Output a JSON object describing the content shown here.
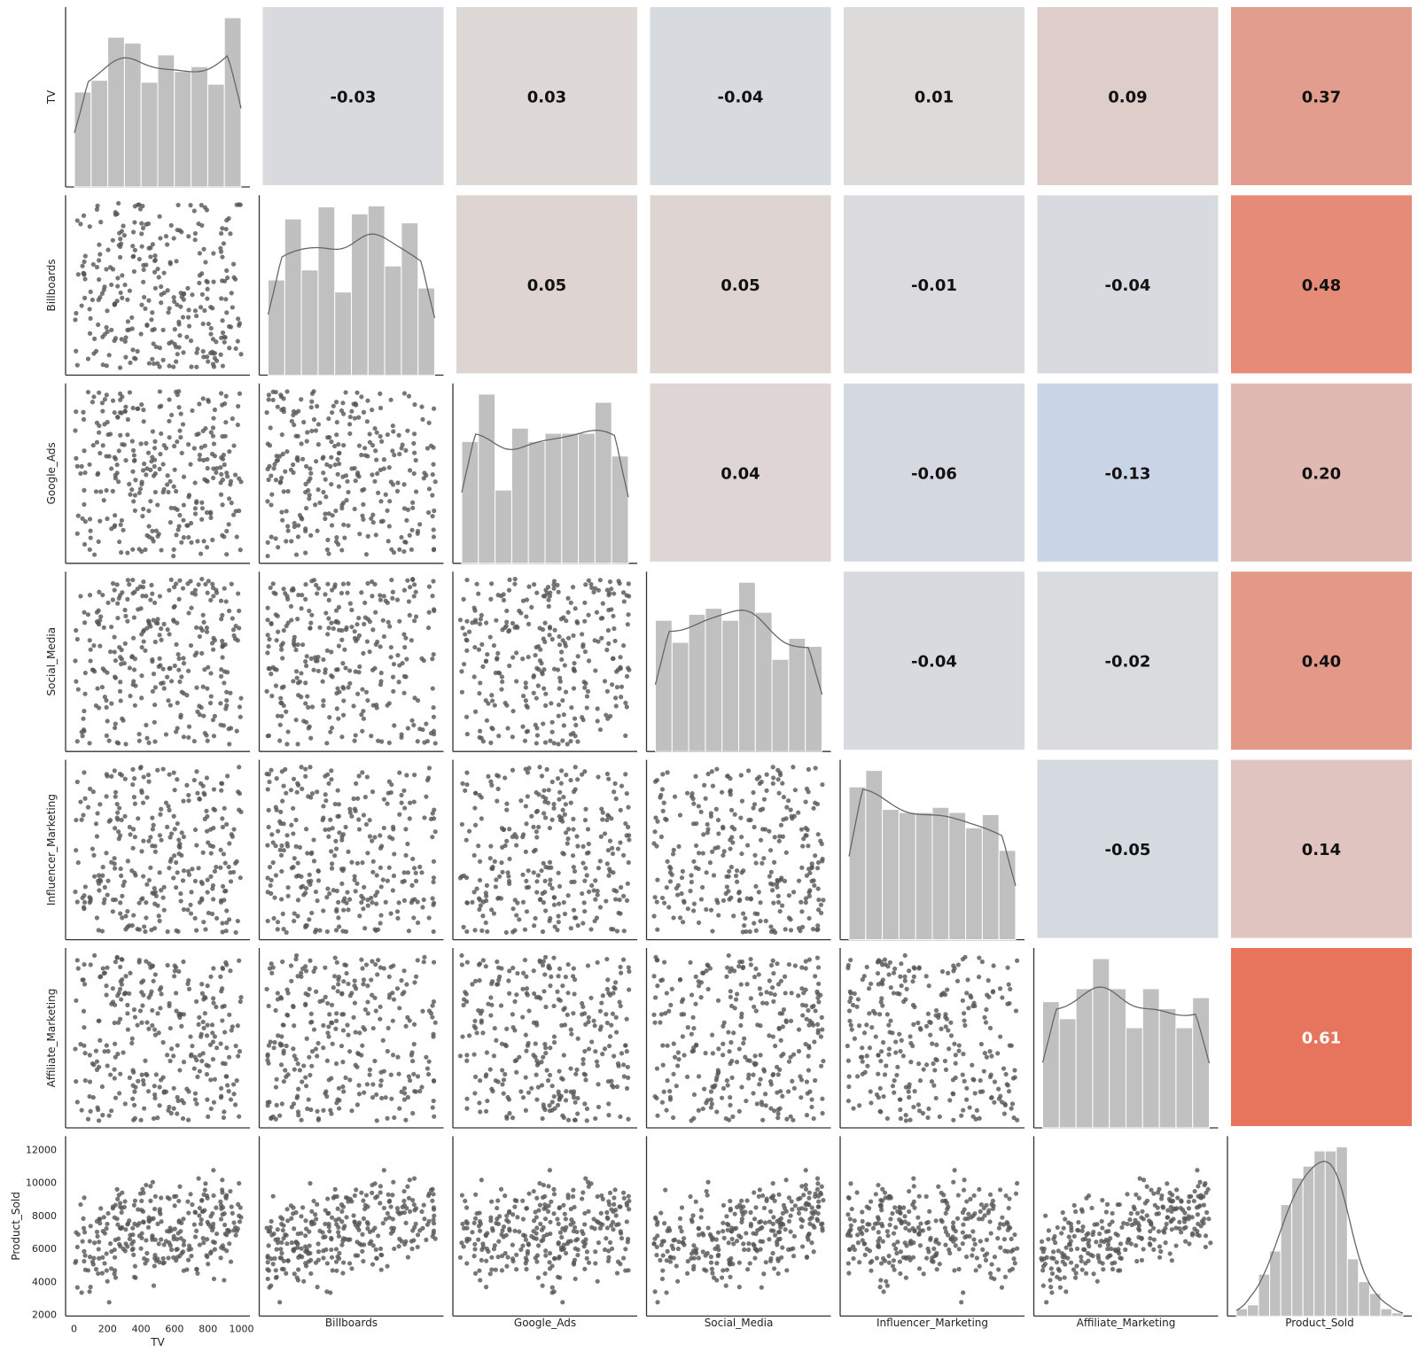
{
  "chart_data": {
    "type": "pairplot",
    "variables": [
      "TV",
      "Billboards",
      "Google_Ads",
      "Social_Media",
      "Influencer_Marketing",
      "Affiliate_Marketing",
      "Product_Sold"
    ],
    "correlation_upper": [
      [
        null,
        "-0.03",
        "0.03",
        "-0.04",
        "0.01",
        "0.09",
        "0.37"
      ],
      [
        null,
        null,
        "0.05",
        "0.05",
        "-0.01",
        "-0.04",
        "0.48"
      ],
      [
        null,
        null,
        null,
        "0.04",
        "-0.06",
        "-0.13",
        "0.20"
      ],
      [
        null,
        null,
        null,
        null,
        "-0.04",
        "-0.02",
        "0.40"
      ],
      [
        null,
        null,
        null,
        null,
        null,
        "-0.05",
        "0.14"
      ],
      [
        null,
        null,
        null,
        null,
        null,
        null,
        "0.61"
      ],
      [
        null,
        null,
        null,
        null,
        null,
        null,
        null
      ]
    ],
    "histograms": {
      "TV": [
        97,
        109,
        153,
        147,
        107,
        135,
        118,
        123,
        105,
        173
      ],
      "Billboards": [
        95,
        156,
        105,
        168,
        83,
        161,
        169,
        109,
        152,
        87
      ],
      "Google_Ads": [
        118,
        164,
        71,
        131,
        118,
        126,
        126,
        126,
        156,
        104
      ],
      "Social_Media": [
        131,
        109,
        137,
        143,
        131,
        169,
        139,
        92,
        113,
        105
      ],
      "Influencer_Marketing": [
        149,
        165,
        127,
        124,
        124,
        129,
        124,
        109,
        122,
        87
      ],
      "Affiliate_Marketing": [
        126,
        109,
        139,
        169,
        139,
        100,
        139,
        119,
        100,
        130
      ],
      "Product_Sold": [
        25,
        38,
        143,
        222,
        380,
        471,
        511,
        563,
        563,
        577,
        195,
        117,
        77,
        25,
        11
      ]
    },
    "x_ticks_TV": [
      "0",
      "200",
      "400",
      "600",
      "800",
      "1000"
    ],
    "x_tick_values_TV": [
      0,
      200,
      400,
      600,
      800,
      1000
    ],
    "x_range_TV": [
      -50,
      1050
    ],
    "y_ticks_Product_Sold": [
      "2000",
      "4000",
      "6000",
      "8000",
      "10000",
      "12000"
    ],
    "y_tick_values_Product_Sold": [
      2000,
      4000,
      6000,
      8000,
      10000,
      12000
    ],
    "y_range_Product_Sold": [
      1900,
      12800
    ],
    "n_points": 300,
    "colors": {
      "negative": "#b6cdef",
      "neutral": "#dddcdc",
      "positive": "#e8694e",
      "bar": "#c0c0c0",
      "point": "#555555",
      "kde": "#666666",
      "axis": "#333333"
    }
  }
}
